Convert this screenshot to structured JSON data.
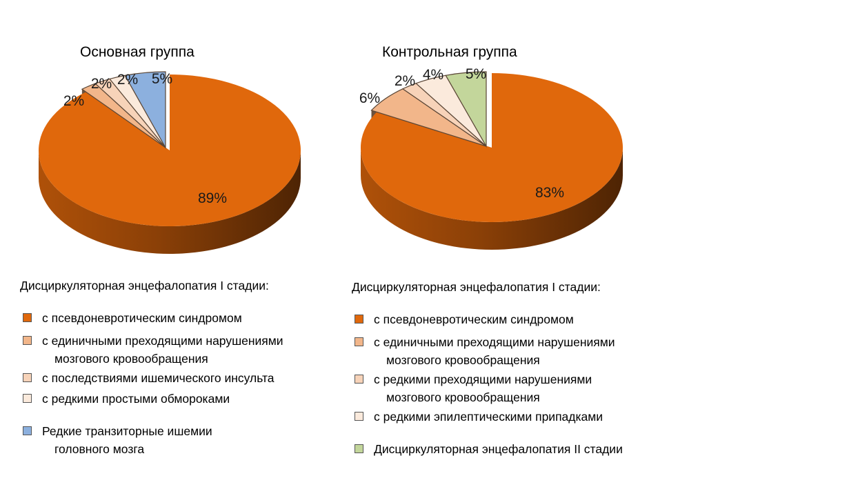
{
  "chart_data": [
    {
      "type": "pie",
      "title": "Основная группа",
      "slices": [
        {
          "label": "с псевдоневротическим синдромом",
          "value": 89,
          "data_label": "89%",
          "color": "#E0680C"
        },
        {
          "label": "с единичными преходящими нарушениями мозгового кровообращения",
          "value": 2,
          "data_label": "2%",
          "color": "#F2B68A"
        },
        {
          "label": "с последствиями ишемического инсульта",
          "value": 2,
          "data_label": "2%",
          "color": "#F7D3B9"
        },
        {
          "label": "с редкими простыми обмороками",
          "value": 2,
          "data_label": "2%",
          "color": "#FBEADC"
        },
        {
          "label": "Редкие транзиторные ишемии головного мозга",
          "value": 5,
          "data_label": "5%",
          "color": "#8CB0DE"
        }
      ],
      "legend_heading": "Дисциркуляторная энцефалопатия I стадии:",
      "legend": [
        {
          "lines": [
            "с псевдоневротическим синдромом"
          ],
          "color": "#E0680C"
        },
        {
          "lines": [
            "с единичными преходящими нарушениями",
            "мозгового кровообращения"
          ],
          "color": "#F2B68A"
        },
        {
          "lines": [
            "с последствиями ишемического инсульта"
          ],
          "color": "#F7D3B9"
        },
        {
          "lines": [
            "с редкими простыми обмороками"
          ],
          "color": "#FBEADC"
        },
        {
          "lines": [
            "Редкие транзиторные ишемии",
            "головного мозга"
          ],
          "color": "#8CB0DE"
        }
      ]
    },
    {
      "type": "pie",
      "title": "Контрольная группа",
      "slices": [
        {
          "label": "с псевдоневротическим синдромом",
          "value": 83,
          "data_label": "83%",
          "color": "#E0680C"
        },
        {
          "label": "с единичными преходящими нарушениями мозгового кровообращения",
          "value": 6,
          "data_label": "6%",
          "color": "#F2B68A"
        },
        {
          "label": "с редкими преходящими нарушениями мозгового кровообращения",
          "value": 2,
          "data_label": "2%",
          "color": "#F7D3B9"
        },
        {
          "label": "с редкими эпилептическими припадками",
          "value": 4,
          "data_label": "4%",
          "color": "#FBEADC"
        },
        {
          "label": "Дисциркуляторная энцефалопатия II стадии",
          "value": 5,
          "data_label": "5%",
          "color": "#C3D69B"
        }
      ],
      "legend_heading": "Дисциркуляторная энцефалопатия I стадии:",
      "legend": [
        {
          "lines": [
            "с псевдоневротическим синдромом"
          ],
          "color": "#E0680C"
        },
        {
          "lines": [
            "с единичными преходящими нарушениями",
            "мозгового кровообращения"
          ],
          "color": "#F2B68A"
        },
        {
          "lines": [
            "с редкими преходящими нарушениями",
            "мозгового кровообращения"
          ],
          "color": "#F7D3B9"
        },
        {
          "lines": [
            "с редкими эпилептическими припадками"
          ],
          "color": "#FBEADC"
        },
        {
          "lines": [
            "Дисциркуляторная энцефалопатия II стадии"
          ],
          "color": "#C3D69B"
        }
      ]
    }
  ]
}
